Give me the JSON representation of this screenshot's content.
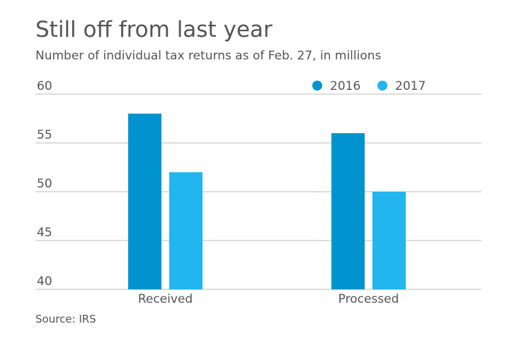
{
  "chart_data": {
    "type": "bar",
    "title": "Still off from last year",
    "subtitle": "Number of individual tax returns as of Feb. 27, in millions",
    "source": "Source: IRS",
    "categories": [
      "Received",
      "Processed"
    ],
    "series": [
      {
        "name": "2016",
        "color": "#0093d0",
        "values": [
          58,
          56
        ]
      },
      {
        "name": "2017",
        "color": "#22b5f0",
        "values": [
          52,
          50
        ]
      }
    ],
    "ylim": [
      40,
      60
    ],
    "yticks": [
      40,
      45,
      50,
      55,
      60
    ],
    "grid": true,
    "legend": "top-right"
  }
}
